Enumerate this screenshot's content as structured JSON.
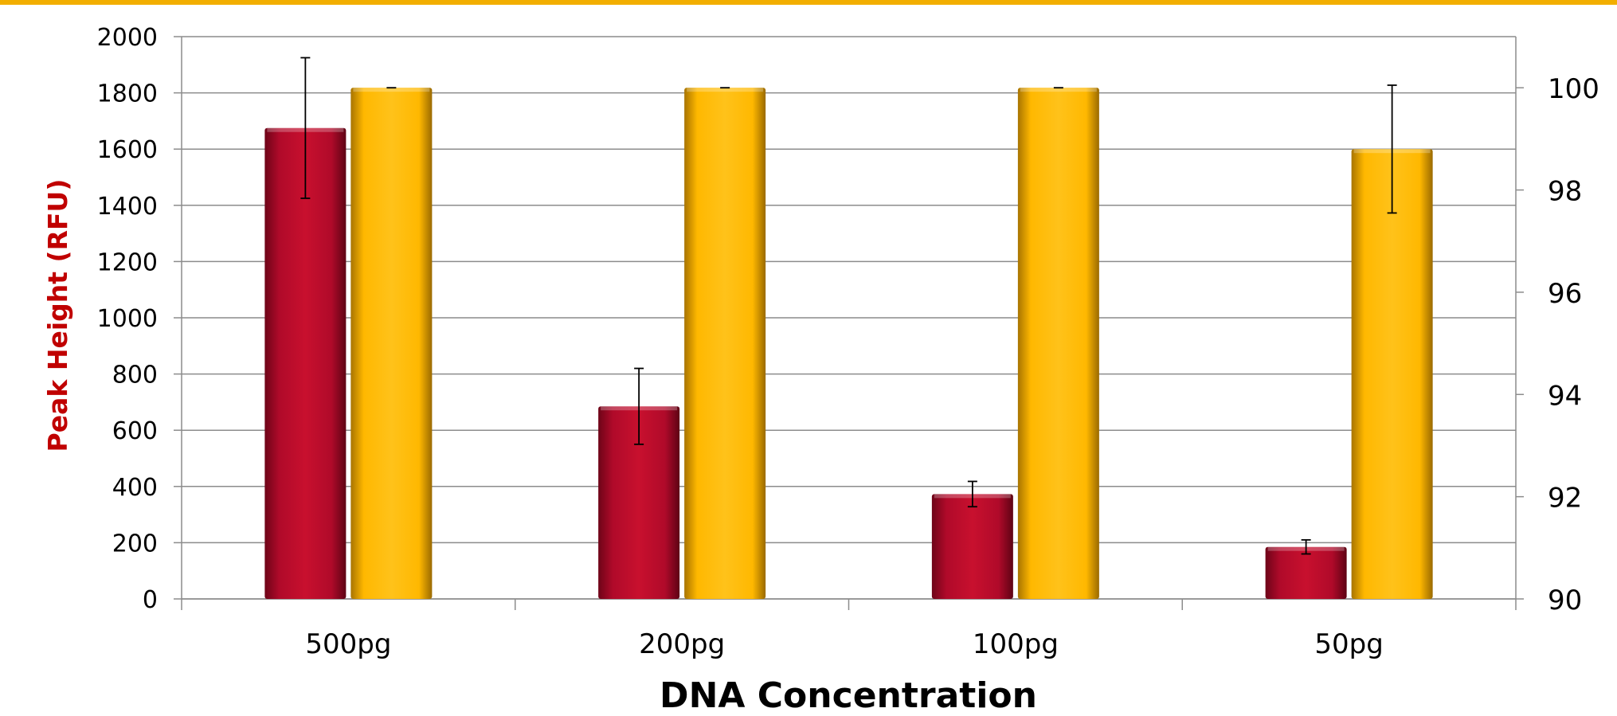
{
  "colors": {
    "top_border": "#F2AE00",
    "series_peak": "#B00A2A",
    "series_right": "#FFB800",
    "grid": "#8C8C8C",
    "ylabel_left": "#C00000"
  },
  "chart_data": {
    "type": "bar",
    "categories": [
      "500pg",
      "200pg",
      "100pg",
      "50pg"
    ],
    "xlabel": "DNA Concentration",
    "ylabel": "Peak Height (RFU)",
    "ylabel_right": "",
    "ylim": [
      0,
      2000
    ],
    "ylim_right": [
      90,
      101
    ],
    "yticks": [
      0,
      200,
      400,
      600,
      800,
      1000,
      1200,
      1400,
      1600,
      1800,
      2000
    ],
    "yticks_right": [
      90,
      92,
      94,
      96,
      98,
      100
    ],
    "grid": true,
    "legend": "none",
    "series": [
      {
        "axis": "left",
        "color": "#B00A2A",
        "values": [
          1675,
          685,
          373,
          185
        ],
        "error": [
          250,
          135,
          45,
          25
        ]
      },
      {
        "axis": "right",
        "color": "#FFB800",
        "values": [
          100,
          100,
          100,
          98.8
        ],
        "error": [
          0,
          0,
          0,
          1.25
        ]
      }
    ]
  }
}
